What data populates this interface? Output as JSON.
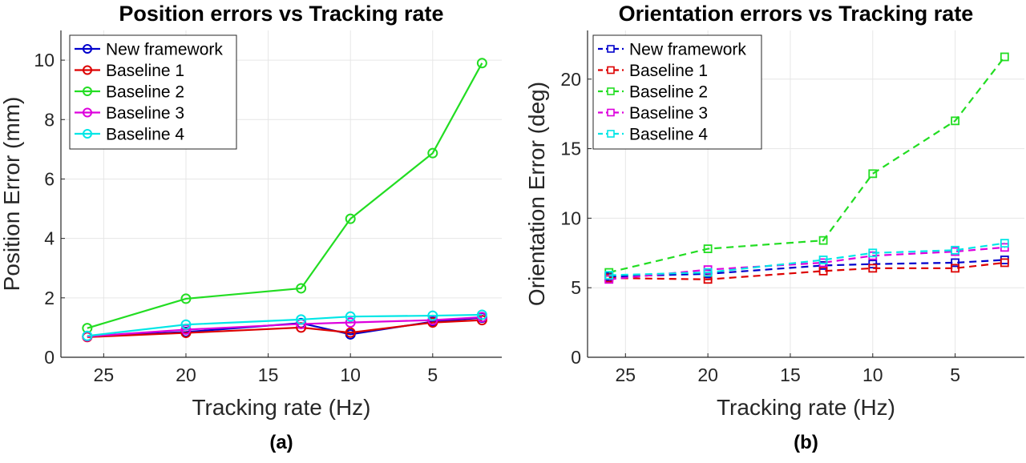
{
  "chart_data": [
    {
      "type": "line",
      "id": "a",
      "title": "Position errors vs Tracking rate",
      "xlabel": "Tracking rate (Hz)",
      "ylabel": "Position Error (mm)",
      "caption": "(a)",
      "xlim": [
        27.6,
        0.8
      ],
      "ylim": [
        0,
        11
      ],
      "xticks": [
        25,
        20,
        15,
        10,
        5
      ],
      "yticks": [
        0,
        2,
        4,
        6,
        8,
        10
      ],
      "grid": true,
      "legend_location": "top-left",
      "marker": "circle",
      "line_style": "solid",
      "x": [
        26,
        20,
        13,
        10,
        5,
        2
      ],
      "series": [
        {
          "name": "New framework",
          "color": "#0000cc",
          "values": [
            0.7,
            0.85,
            1.15,
            0.77,
            1.2,
            1.33
          ]
        },
        {
          "name": "Baseline 1",
          "color": "#dd0000",
          "values": [
            0.68,
            0.82,
            1.0,
            0.83,
            1.17,
            1.25
          ]
        },
        {
          "name": "Baseline 2",
          "color": "#22dd22",
          "values": [
            0.98,
            1.97,
            2.32,
            4.66,
            6.87,
            9.9
          ]
        },
        {
          "name": "Baseline 3",
          "color": "#dd00dd",
          "values": [
            0.7,
            0.93,
            1.12,
            1.17,
            1.25,
            1.35
          ]
        },
        {
          "name": "Baseline 4",
          "color": "#00e6e6",
          "values": [
            0.72,
            1.1,
            1.27,
            1.37,
            1.4,
            1.43
          ]
        }
      ]
    },
    {
      "type": "line",
      "id": "b",
      "title": "Orientation errors vs Tracking rate",
      "xlabel": "Tracking rate (Hz)",
      "ylabel": "Orientation Error (deg)",
      "caption": "(b)",
      "xlim": [
        27.3,
        0.8
      ],
      "ylim": [
        0,
        23.5
      ],
      "xticks": [
        25,
        20,
        15,
        10,
        5
      ],
      "yticks": [
        0,
        5,
        10,
        15,
        20
      ],
      "grid": true,
      "legend_location": "top-left",
      "marker": "square",
      "line_style": "dashed",
      "x": [
        26,
        20,
        13,
        10,
        5,
        2
      ],
      "series": [
        {
          "name": "New framework",
          "color": "#0000cc",
          "values": [
            5.8,
            6.0,
            6.6,
            6.7,
            6.8,
            7.0
          ]
        },
        {
          "name": "Baseline 1",
          "color": "#dd0000",
          "values": [
            5.7,
            5.6,
            6.2,
            6.4,
            6.4,
            6.8
          ]
        },
        {
          "name": "Baseline 2",
          "color": "#22dd22",
          "values": [
            6.1,
            7.8,
            8.4,
            13.2,
            17.0,
            21.6
          ]
        },
        {
          "name": "Baseline 3",
          "color": "#dd00dd",
          "values": [
            5.6,
            6.3,
            6.8,
            7.3,
            7.6,
            7.9
          ]
        },
        {
          "name": "Baseline 4",
          "color": "#00e6e6",
          "values": [
            5.9,
            6.1,
            7.0,
            7.5,
            7.7,
            8.2
          ]
        }
      ]
    }
  ]
}
